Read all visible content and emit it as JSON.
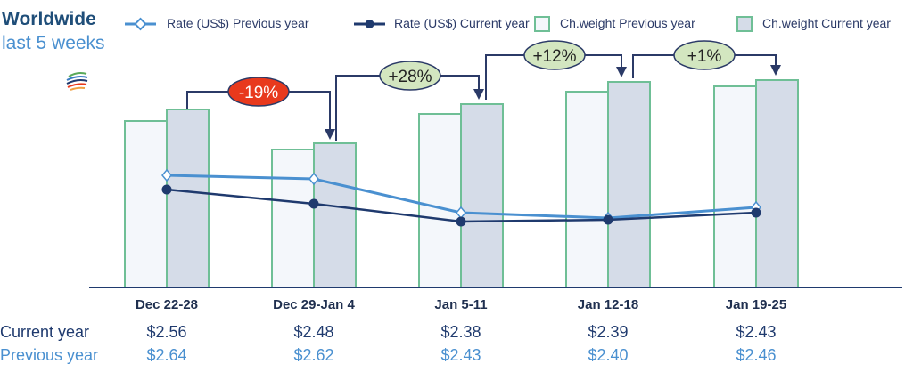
{
  "header": {
    "title": "Worldwide",
    "subtitle": "last 5 weeks",
    "logo": "WORLD ACD"
  },
  "colors": {
    "prev_line": "#4a90d0",
    "curr_line": "#1f3a6e",
    "bar_border": "#6fbf96",
    "prev_bar": "#f4f7fb",
    "curr_bar": "#d5dce8",
    "down_pill": "#e8391d",
    "up_pill": "#d3e6c0"
  },
  "chart_data": {
    "type": "bar+line",
    "categories": [
      "Dec 22-28",
      "Dec 29-Jan 4",
      "Jan 5-11",
      "Jan 12-18",
      "Jan 19-25"
    ],
    "legend_position": "top",
    "series": [
      {
        "name": "Rate (US$) Previous year",
        "kind": "line",
        "marker": "diamond",
        "values": [
          2.64,
          2.62,
          2.43,
          2.4,
          2.46
        ]
      },
      {
        "name": "Rate (US$) Current year",
        "kind": "line",
        "marker": "circle",
        "values": [
          2.56,
          2.48,
          2.38,
          2.39,
          2.43
        ]
      },
      {
        "name": "Ch.weight Previous year",
        "kind": "bar",
        "values": [
          187,
          155,
          195,
          220,
          226
        ]
      },
      {
        "name": "Ch.weight Current year",
        "kind": "bar",
        "values": [
          200,
          162,
          206,
          231,
          233
        ]
      }
    ],
    "annotations": [
      "-19%",
      "+28%",
      "+12%",
      "+1%"
    ],
    "table": {
      "rows": [
        {
          "label": "Current year",
          "values": [
            "$2.56",
            "$2.48",
            "$2.38",
            "$2.39",
            "$2.43"
          ]
        },
        {
          "label": "Previous year",
          "values": [
            "$2.64",
            "$2.62",
            "$2.43",
            "$2.40",
            "$2.46"
          ]
        }
      ]
    }
  }
}
